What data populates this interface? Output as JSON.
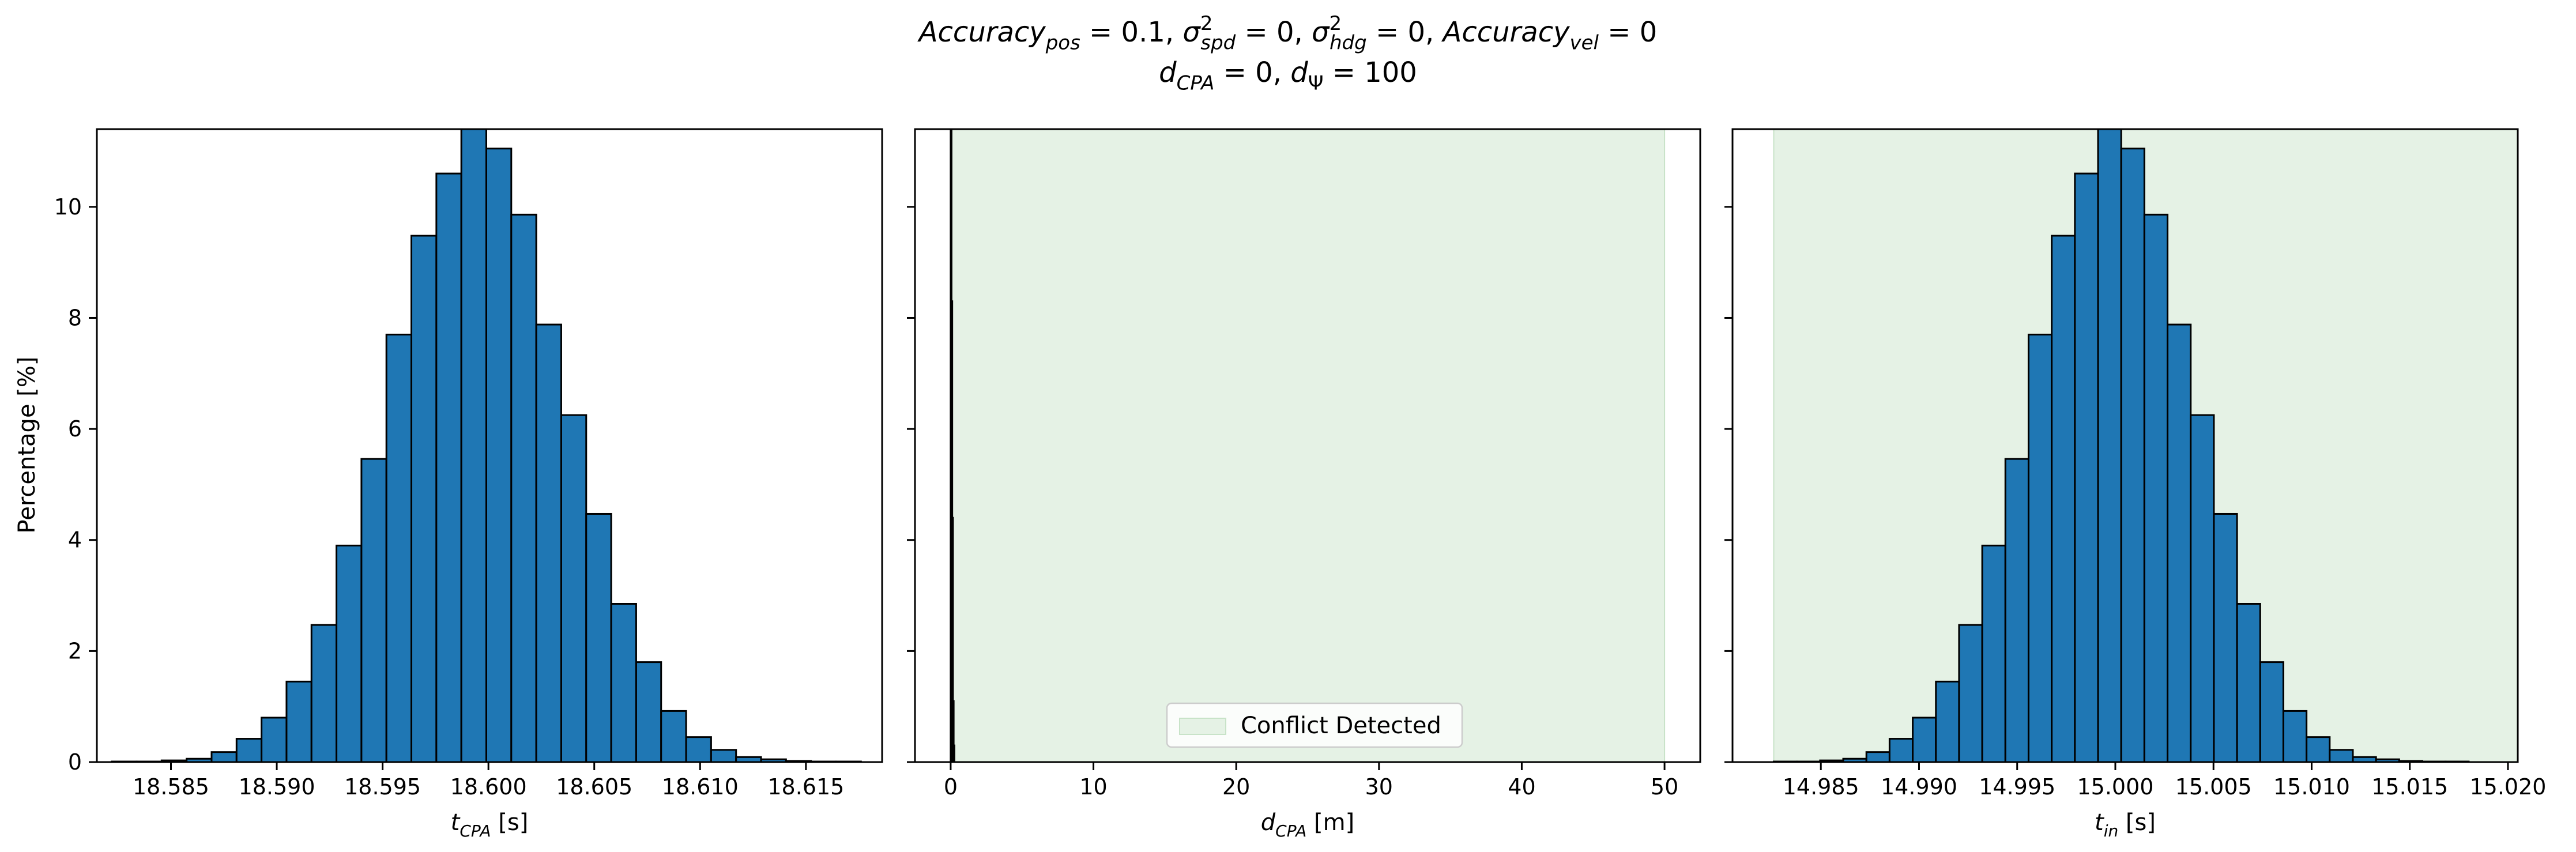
{
  "figure": {
    "title_parts": [
      {
        "t": "Accuracy",
        "style": "italic"
      },
      {
        "t": "pos",
        "style": "italic",
        "shift": "sub"
      },
      {
        "t": " = 0.1, "
      },
      {
        "t": "σ",
        "style": "italic"
      },
      {
        "t": "2",
        "shift": "super"
      },
      {
        "t": "spd",
        "style": "italic",
        "shift": "sub"
      },
      {
        "t": " = 0, "
      },
      {
        "t": "σ",
        "style": "italic"
      },
      {
        "t": "2",
        "shift": "super"
      },
      {
        "t": "hdg",
        "style": "italic",
        "shift": "sub"
      },
      {
        "t": " = 0, "
      },
      {
        "t": "Accuracy",
        "style": "italic"
      },
      {
        "t": "vel",
        "style": "italic",
        "shift": "sub"
      },
      {
        "t": " = 0"
      }
    ],
    "subtitle_parts": [
      {
        "t": "d",
        "style": "italic"
      },
      {
        "t": "CPA",
        "style": "italic",
        "shift": "sub"
      },
      {
        "t": " = 0, "
      },
      {
        "t": "d",
        "style": "italic"
      },
      {
        "t": "Ψ",
        "shift": "sub"
      },
      {
        "t": " = 100"
      }
    ]
  },
  "colors": {
    "bar_fill": "#1f77b4",
    "bar_edge": "#000000",
    "region_fill": "#e5f2e5",
    "region_edge": "#c8e3c8",
    "axes": "#000000"
  },
  "chart_data": [
    {
      "type": "bar",
      "name": "t_cpa_histogram",
      "xlabel_parts": [
        {
          "t": "t",
          "style": "italic"
        },
        {
          "t": "CPA",
          "style": "italic",
          "shift": "sub"
        },
        {
          "t": " [s]"
        }
      ],
      "ylabel": "Percentage [%]",
      "xlim": [
        18.5815,
        18.6186
      ],
      "ylim": [
        0,
        11.4
      ],
      "xticks": [
        18.585,
        18.59,
        18.595,
        18.6,
        18.605,
        18.61,
        18.615
      ],
      "xtick_labels": [
        "18.585",
        "18.590",
        "18.595",
        "18.600",
        "18.605",
        "18.610",
        "18.615"
      ],
      "yticks": [
        0,
        2,
        4,
        6,
        8,
        10
      ],
      "ytick_labels": [
        "0",
        "2",
        "4",
        "6",
        "8",
        "10"
      ],
      "bin_start": 18.5822,
      "bin_width": 0.00118,
      "values": [
        0.01,
        0.01,
        0.03,
        0.06,
        0.18,
        0.42,
        0.8,
        1.45,
        2.47,
        3.9,
        5.46,
        7.7,
        9.48,
        10.6,
        11.45,
        11.05,
        9.86,
        7.88,
        6.25,
        4.47,
        2.85,
        1.8,
        0.92,
        0.45,
        0.22,
        0.09,
        0.05,
        0.02,
        0.01,
        0.01
      ],
      "grid": false
    },
    {
      "type": "bar",
      "name": "d_cpa_histogram",
      "xlabel_parts": [
        {
          "t": "d",
          "style": "italic"
        },
        {
          "t": "CPA",
          "style": "italic",
          "shift": "sub"
        },
        {
          "t": " [m]"
        }
      ],
      "xlim": [
        -2.5,
        52.5
      ],
      "ylim": [
        0,
        11.4
      ],
      "xticks": [
        0,
        10,
        20,
        30,
        40,
        50
      ],
      "xtick_labels": [
        "0",
        "10",
        "20",
        "30",
        "40",
        "50"
      ],
      "yticks": [
        0,
        2,
        4,
        6,
        8,
        10
      ],
      "region": {
        "x0": 0,
        "x1": 50,
        "label": "Conflict Detected"
      },
      "spike_bars": [
        {
          "x0": 0.0,
          "x1": 0.05,
          "value": 11.4
        },
        {
          "x0": 0.05,
          "x1": 0.1,
          "value": 8.3
        },
        {
          "x0": 0.1,
          "x1": 0.15,
          "value": 4.4
        },
        {
          "x0": 0.15,
          "x1": 0.2,
          "value": 1.1
        },
        {
          "x0": 0.2,
          "x1": 0.25,
          "value": 0.3
        }
      ],
      "legend": {
        "placement": "lower-center",
        "entries": [
          "Conflict Detected"
        ]
      },
      "grid": false
    },
    {
      "type": "bar",
      "name": "t_in_histogram",
      "xlabel_parts": [
        {
          "t": "t",
          "style": "italic"
        },
        {
          "t": "in",
          "style": "italic",
          "shift": "sub"
        },
        {
          "t": " [s]"
        }
      ],
      "xlim": [
        14.9805,
        15.0205
      ],
      "ylim": [
        0,
        11.4
      ],
      "xticks": [
        14.985,
        14.99,
        14.995,
        15.0,
        15.005,
        15.01,
        15.015,
        15.02
      ],
      "xtick_labels": [
        "14.985",
        "14.990",
        "14.995",
        "15.000",
        "15.005",
        "15.010",
        "15.015",
        "15.020"
      ],
      "yticks": [
        0,
        2,
        4,
        6,
        8,
        10
      ],
      "region": {
        "x0": 14.9826,
        "x1": 15.0205
      },
      "bin_start": 14.9826,
      "bin_width": 0.00118,
      "values": [
        0.01,
        0.01,
        0.03,
        0.06,
        0.18,
        0.42,
        0.8,
        1.45,
        2.47,
        3.9,
        5.46,
        7.7,
        9.48,
        10.6,
        11.45,
        11.05,
        9.86,
        7.88,
        6.25,
        4.47,
        2.85,
        1.8,
        0.92,
        0.45,
        0.22,
        0.09,
        0.05,
        0.02,
        0.01,
        0.01
      ],
      "grid": false
    }
  ]
}
